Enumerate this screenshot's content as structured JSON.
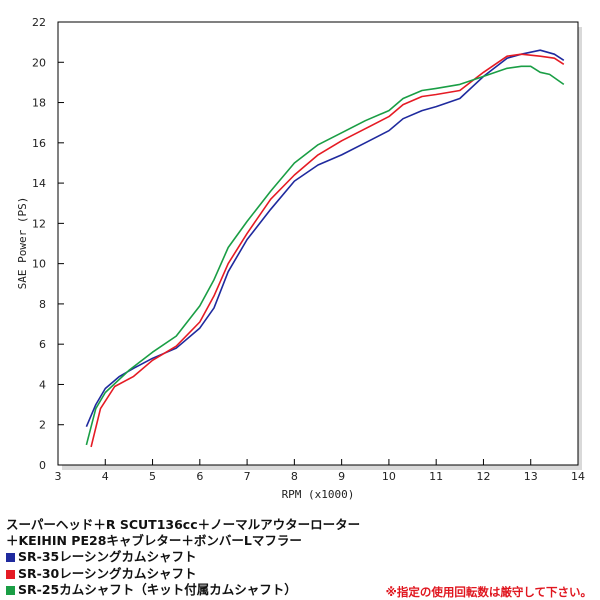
{
  "chart_data": {
    "type": "line",
    "xlabel": "RPM (x1000)",
    "ylabel": "SAE Power (PS)",
    "xlim": [
      3,
      14
    ],
    "ylim": [
      0,
      22
    ],
    "x_ticks": [
      "3",
      "4",
      "5",
      "6",
      "7",
      "8",
      "9",
      "10",
      "11",
      "12",
      "13",
      "14"
    ],
    "y_ticks": [
      "0",
      "2",
      "4",
      "6",
      "8",
      "10",
      "12",
      "14",
      "16",
      "18",
      "20",
      "22"
    ],
    "grid": false,
    "legend_position": "below chart",
    "series": [
      {
        "name": "SR-35レーシングカムシャフト",
        "color": "#1f2a9e",
        "points": [
          [
            3.6,
            1.9
          ],
          [
            3.8,
            3.0
          ],
          [
            4.0,
            3.8
          ],
          [
            4.3,
            4.4
          ],
          [
            4.6,
            4.8
          ],
          [
            5.0,
            5.3
          ],
          [
            5.5,
            5.8
          ],
          [
            6.0,
            6.8
          ],
          [
            6.3,
            7.8
          ],
          [
            6.6,
            9.6
          ],
          [
            7.0,
            11.2
          ],
          [
            7.5,
            12.7
          ],
          [
            8.0,
            14.1
          ],
          [
            8.5,
            14.9
          ],
          [
            9.0,
            15.4
          ],
          [
            9.5,
            16.0
          ],
          [
            10.0,
            16.6
          ],
          [
            10.3,
            17.2
          ],
          [
            10.7,
            17.6
          ],
          [
            11.0,
            17.8
          ],
          [
            11.5,
            18.2
          ],
          [
            12.0,
            19.3
          ],
          [
            12.5,
            20.2
          ],
          [
            12.8,
            20.4
          ],
          [
            13.2,
            20.6
          ],
          [
            13.5,
            20.4
          ],
          [
            13.7,
            20.1
          ]
        ]
      },
      {
        "name": "SR-30レーシングカムシャフト",
        "color": "#e51b24",
        "points": [
          [
            3.7,
            0.9
          ],
          [
            3.9,
            2.8
          ],
          [
            4.2,
            3.9
          ],
          [
            4.6,
            4.4
          ],
          [
            5.0,
            5.2
          ],
          [
            5.5,
            5.9
          ],
          [
            6.0,
            7.1
          ],
          [
            6.3,
            8.4
          ],
          [
            6.6,
            10.0
          ],
          [
            7.0,
            11.5
          ],
          [
            7.5,
            13.2
          ],
          [
            8.0,
            14.4
          ],
          [
            8.5,
            15.4
          ],
          [
            9.0,
            16.1
          ],
          [
            9.5,
            16.7
          ],
          [
            10.0,
            17.3
          ],
          [
            10.3,
            17.9
          ],
          [
            10.7,
            18.3
          ],
          [
            11.0,
            18.4
          ],
          [
            11.5,
            18.6
          ],
          [
            12.0,
            19.5
          ],
          [
            12.5,
            20.3
          ],
          [
            12.8,
            20.4
          ],
          [
            13.2,
            20.3
          ],
          [
            13.5,
            20.2
          ],
          [
            13.7,
            19.9
          ]
        ]
      },
      {
        "name": "SR-25カムシャフト（キット付属カムシャフト）",
        "color": "#1a9e45",
        "points": [
          [
            3.6,
            1.0
          ],
          [
            3.8,
            2.8
          ],
          [
            4.0,
            3.6
          ],
          [
            4.5,
            4.7
          ],
          [
            5.0,
            5.6
          ],
          [
            5.5,
            6.4
          ],
          [
            6.0,
            7.9
          ],
          [
            6.3,
            9.2
          ],
          [
            6.6,
            10.8
          ],
          [
            7.0,
            12.1
          ],
          [
            7.5,
            13.6
          ],
          [
            8.0,
            15.0
          ],
          [
            8.5,
            15.9
          ],
          [
            9.0,
            16.5
          ],
          [
            9.5,
            17.1
          ],
          [
            10.0,
            17.6
          ],
          [
            10.3,
            18.2
          ],
          [
            10.7,
            18.6
          ],
          [
            11.0,
            18.7
          ],
          [
            11.5,
            18.9
          ],
          [
            12.0,
            19.3
          ],
          [
            12.5,
            19.7
          ],
          [
            12.8,
            19.8
          ],
          [
            13.0,
            19.8
          ],
          [
            13.2,
            19.5
          ],
          [
            13.4,
            19.4
          ],
          [
            13.7,
            18.9
          ]
        ]
      }
    ]
  },
  "caption": {
    "line1": "スーパーヘッド＋R SCUT136cc＋ノーマルアウターローター",
    "line2": "＋KEIHIN PE28キャブレター＋ボンバーLマフラー",
    "warning": "※指定の使用回転数は厳守して下さい。"
  }
}
